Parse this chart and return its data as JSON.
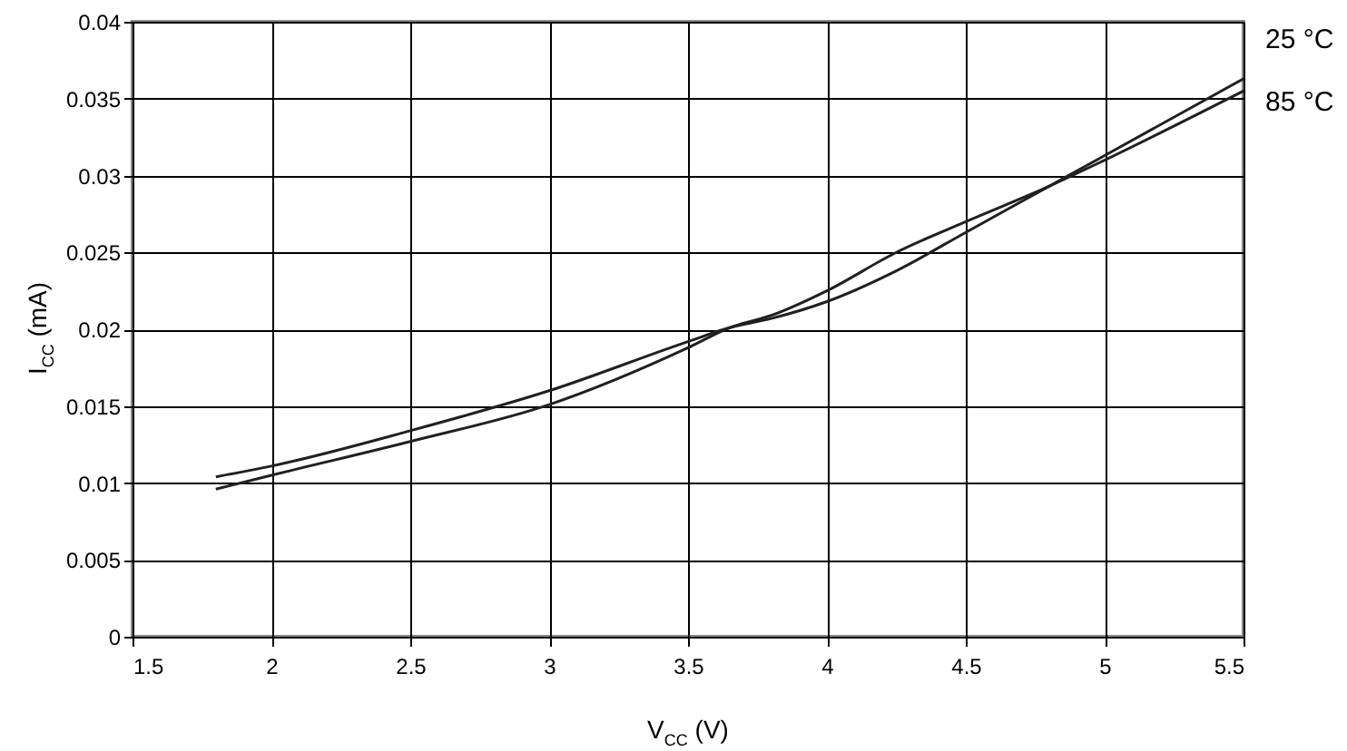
{
  "chart_data": {
    "type": "line",
    "xlabel": "V$_{CC}$ (V)",
    "ylabel": "I$_{CC}$ (mA)",
    "x": [
      1.8,
      2,
      2.5,
      3,
      3.5,
      3.65,
      3.8,
      4,
      4.25,
      4.5,
      4.8,
      5,
      5.5
    ],
    "series": [
      {
        "name": "25 °C",
        "color": "#231f20",
        "values": [
          0.0104,
          0.0111,
          0.0134,
          0.016,
          0.0192,
          0.0201,
          0.0207,
          0.0218,
          0.0238,
          0.0263,
          0.0293,
          0.0313,
          0.0363
        ]
      },
      {
        "name": "85 °C",
        "color": "#231f20",
        "values": [
          0.0096,
          0.0105,
          0.0127,
          0.0151,
          0.0188,
          0.0201,
          0.0209,
          0.0225,
          0.025,
          0.027,
          0.0293,
          0.031,
          0.0355
        ]
      }
    ],
    "xlim": [
      1.5,
      5.5
    ],
    "xticks": [
      1.5,
      2,
      2.5,
      3,
      3.5,
      4,
      4.5,
      5,
      5.5
    ],
    "ylim": [
      0,
      0.04
    ],
    "yticks": [
      0,
      0.005,
      0.01,
      0.015,
      0.02,
      0.025,
      0.03,
      0.035,
      0.04
    ],
    "grid": true,
    "marker": "none",
    "line_style": "solid"
  }
}
